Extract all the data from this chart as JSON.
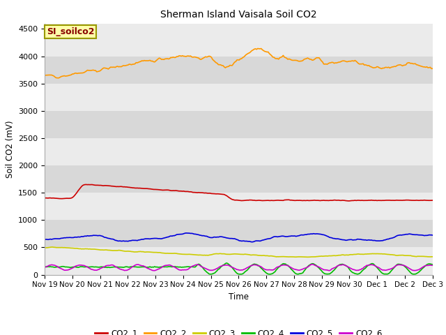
{
  "title": "Sherman Island Vaisala Soil CO2",
  "ylabel": "Soil CO2 (mV)",
  "xlabel": "Time",
  "legend_label": "SI_soilco2",
  "ylim": [
    0,
    4600
  ],
  "bg_light": "#ebebeb",
  "bg_dark": "#d8d8d8",
  "series": {
    "CO2_1": {
      "color": "#cc0000",
      "label": "CO2_1"
    },
    "CO2_2": {
      "color": "#ff9900",
      "label": "CO2_2"
    },
    "CO2_3": {
      "color": "#cccc00",
      "label": "CO2_3"
    },
    "CO2_4": {
      "color": "#00bb00",
      "label": "CO2_4"
    },
    "CO2_5": {
      "color": "#0000dd",
      "label": "CO2_5"
    },
    "CO2_6": {
      "color": "#cc00cc",
      "label": "CO2_6"
    }
  },
  "xtick_labels": [
    "Nov 19",
    "Nov 20",
    "Nov 21",
    "Nov 22",
    "Nov 23",
    "Nov 24",
    "Nov 25",
    "Nov 26",
    "Nov 27",
    "Nov 28",
    "Nov 29",
    "Nov 30",
    "Dec 1",
    "Dec 2",
    "Dec 3"
  ],
  "ytick_vals": [
    0,
    500,
    1000,
    1500,
    2000,
    2500,
    3000,
    3500,
    4000,
    4500
  ]
}
